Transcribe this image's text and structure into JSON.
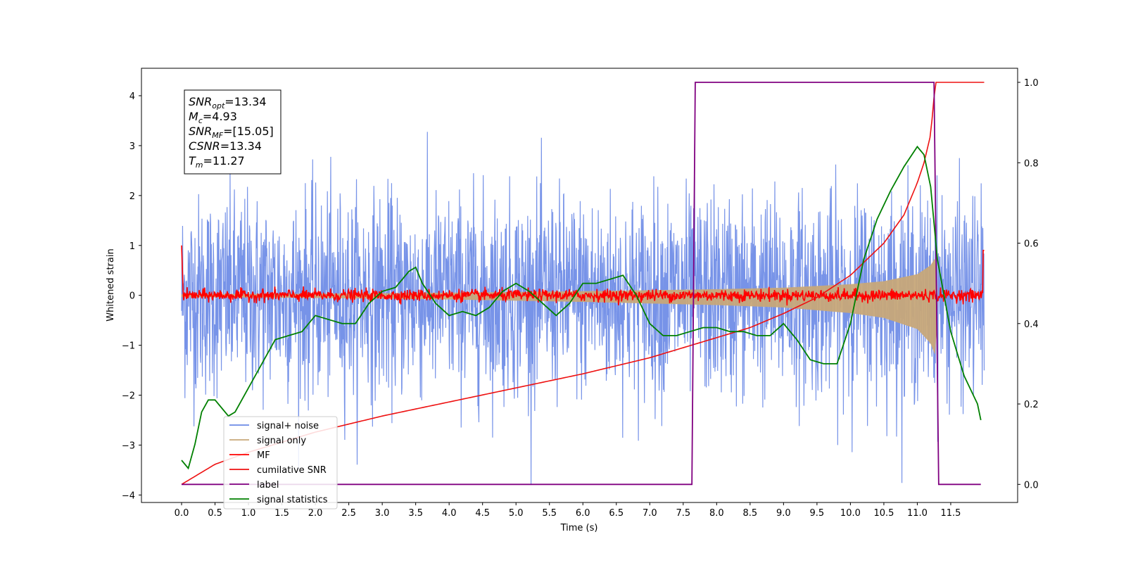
{
  "chart_data": {
    "type": "line",
    "xlabel": "Time (s)",
    "ylabel": "Whitened strain",
    "xlim": [
      -0.6,
      12.5
    ],
    "ylim": [
      -4.15,
      4.55
    ],
    "y2lim": [
      -0.045,
      1.035
    ],
    "x_ticks": [
      0.0,
      0.5,
      1.0,
      1.5,
      2.0,
      2.5,
      3.0,
      3.5,
      4.0,
      4.5,
      5.0,
      5.5,
      6.0,
      6.5,
      7.0,
      7.5,
      8.0,
      8.5,
      9.0,
      9.5,
      10.0,
      10.5,
      11.0,
      11.5
    ],
    "x_tick_labels": [
      "0.0",
      "0.5",
      "1.0",
      "1.5",
      "2.0",
      "2.5",
      "3.0",
      "3.5",
      "4.0",
      "4.5",
      "5.0",
      "5.5",
      "6.0",
      "6.5",
      "7.0",
      "7.5",
      "8.0",
      "8.5",
      "9.0",
      "9.5",
      "10.0",
      "10.5",
      "11.0",
      "11.5"
    ],
    "y_ticks": [
      -4,
      -3,
      -2,
      -1,
      0,
      1,
      2,
      3,
      4
    ],
    "y_tick_labels": [
      "−4",
      "−3",
      "−2",
      "−1",
      "0",
      "1",
      "2",
      "3",
      "4"
    ],
    "y2_ticks": [
      0.0,
      0.2,
      0.4,
      0.6,
      0.8,
      1.0
    ],
    "y2_tick_labels": [
      "0.0",
      "0.2",
      "0.4",
      "0.6",
      "0.8",
      "1.0"
    ],
    "duration": 12.0,
    "noise_sigma": 1.0,
    "signal_only_envelope": {
      "x": [
        0.0,
        2.0,
        4.0,
        6.0,
        8.0,
        9.0,
        10.0,
        10.5,
        11.0,
        11.2,
        11.27,
        11.3,
        12.0
      ],
      "y": [
        0.02,
        0.03,
        0.05,
        0.08,
        0.12,
        0.15,
        0.22,
        0.28,
        0.42,
        0.6,
        0.75,
        0.1,
        0.08
      ]
    },
    "mf_noise_amplitude": 0.06,
    "series": [
      {
        "name": "signal+ noise",
        "color": "#6b8ae6",
        "axis": "left"
      },
      {
        "name": "signal only",
        "color": "#c8a87a",
        "axis": "left"
      },
      {
        "name": "MF",
        "color": "#ff0000",
        "axis": "left"
      },
      {
        "name": "cumilative SNR",
        "color": "#ee1111",
        "axis": "right",
        "x": [
          0.0,
          0.5,
          1.0,
          2.0,
          3.0,
          4.0,
          5.0,
          6.0,
          7.0,
          8.0,
          8.5,
          9.0,
          9.5,
          10.0,
          10.5,
          10.8,
          11.0,
          11.1,
          11.2,
          11.27,
          12.0
        ],
        "y": [
          0.0,
          0.05,
          0.08,
          0.13,
          0.17,
          0.205,
          0.24,
          0.275,
          0.315,
          0.365,
          0.39,
          0.425,
          0.465,
          0.52,
          0.6,
          0.67,
          0.75,
          0.8,
          0.87,
          1.0,
          1.0
        ]
      },
      {
        "name": "label",
        "color": "#800080",
        "axis": "right",
        "x": [
          0.0,
          7.63,
          7.68,
          11.25,
          11.32,
          11.95
        ],
        "y": [
          0.0,
          0.0,
          1.0,
          1.0,
          0.0,
          0.0
        ]
      },
      {
        "name": "signal statistics",
        "color": "#008000",
        "axis": "right",
        "x": [
          0.0,
          0.1,
          0.2,
          0.3,
          0.4,
          0.5,
          0.6,
          0.7,
          0.8,
          0.9,
          1.0,
          1.2,
          1.4,
          1.6,
          1.8,
          2.0,
          2.2,
          2.4,
          2.6,
          2.8,
          3.0,
          3.2,
          3.4,
          3.5,
          3.6,
          3.8,
          4.0,
          4.2,
          4.4,
          4.6,
          4.8,
          5.0,
          5.2,
          5.4,
          5.6,
          5.8,
          6.0,
          6.2,
          6.4,
          6.6,
          6.8,
          7.0,
          7.2,
          7.4,
          7.6,
          7.8,
          8.0,
          8.2,
          8.4,
          8.6,
          8.8,
          9.0,
          9.2,
          9.4,
          9.6,
          9.8,
          10.0,
          10.2,
          10.4,
          10.6,
          10.8,
          11.0,
          11.1,
          11.2,
          11.3,
          11.5,
          11.7,
          11.9,
          11.95
        ],
        "y": [
          0.06,
          0.04,
          0.1,
          0.18,
          0.21,
          0.21,
          0.19,
          0.17,
          0.18,
          0.21,
          0.24,
          0.3,
          0.36,
          0.37,
          0.38,
          0.42,
          0.41,
          0.4,
          0.4,
          0.45,
          0.48,
          0.49,
          0.53,
          0.54,
          0.5,
          0.45,
          0.42,
          0.43,
          0.42,
          0.44,
          0.48,
          0.5,
          0.48,
          0.45,
          0.42,
          0.45,
          0.5,
          0.5,
          0.51,
          0.52,
          0.47,
          0.4,
          0.37,
          0.37,
          0.38,
          0.39,
          0.39,
          0.38,
          0.38,
          0.37,
          0.37,
          0.4,
          0.36,
          0.31,
          0.3,
          0.3,
          0.4,
          0.56,
          0.66,
          0.73,
          0.79,
          0.84,
          0.82,
          0.74,
          0.56,
          0.38,
          0.27,
          0.2,
          0.16
        ]
      }
    ],
    "legend_location": "lower left",
    "annotation": {
      "lines": [
        {
          "base": "SNR",
          "sub": "opt",
          "value": "=13.34"
        },
        {
          "base": "M",
          "sub": "c",
          "value": "=4.93"
        },
        {
          "base": "SNR",
          "sub": "MF",
          "value": "=[15.05]"
        },
        {
          "base": "CSNR",
          "sub": "",
          "value": "=13.34"
        },
        {
          "base": "T",
          "sub": "m",
          "value": "=11.27"
        }
      ]
    }
  }
}
